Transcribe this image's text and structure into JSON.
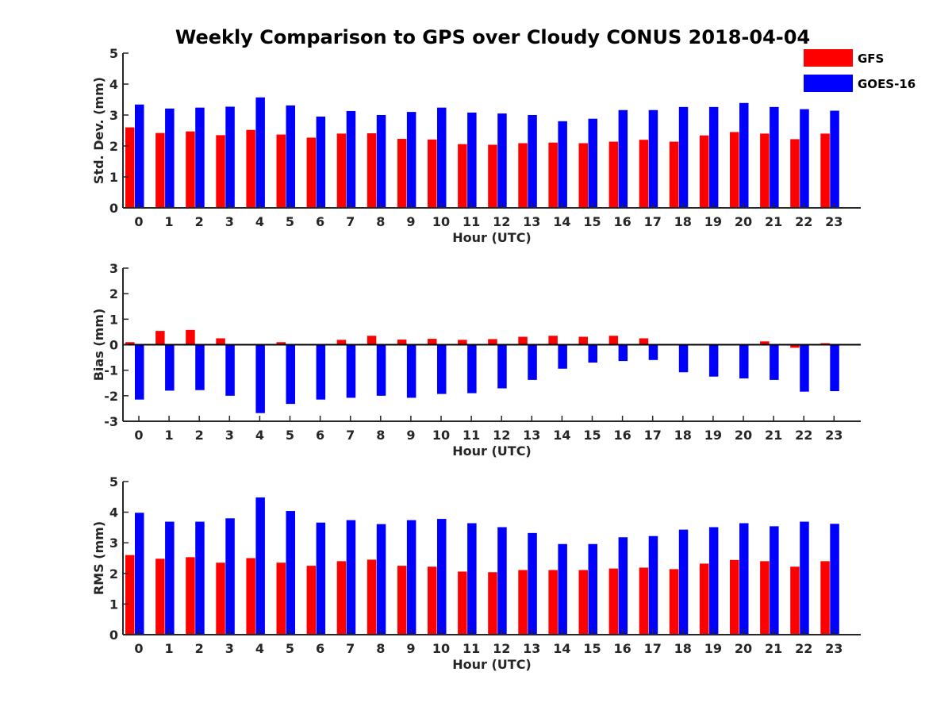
{
  "title": "Weekly Comparison to GPS over Cloudy CONUS 2018-04-04",
  "legend": {
    "placement": "top-right",
    "entries": [
      {
        "label": "GFS",
        "color": "#ff0000"
      },
      {
        "label": "GOES-16",
        "color": "#0000ff"
      }
    ]
  },
  "chart_data": [
    {
      "type": "bar",
      "categories": [
        "0",
        "1",
        "2",
        "3",
        "4",
        "5",
        "6",
        "7",
        "8",
        "9",
        "10",
        "11",
        "12",
        "13",
        "14",
        "15",
        "16",
        "17",
        "18",
        "19",
        "20",
        "21",
        "22",
        "23"
      ],
      "xlabel": "Hour (UTC)",
      "ylabel": "Std. Dev. (mm)",
      "ylim": [
        0,
        5
      ],
      "yticks": [
        "0",
        "1",
        "2",
        "3",
        "4",
        "5"
      ],
      "series": [
        {
          "name": "GFS",
          "color": "#ff0000",
          "values": [
            2.6,
            2.42,
            2.47,
            2.35,
            2.52,
            2.37,
            2.27,
            2.4,
            2.41,
            2.23,
            2.21,
            2.06,
            2.04,
            2.09,
            2.11,
            2.09,
            2.14,
            2.2,
            2.14,
            2.34,
            2.45,
            2.4,
            2.22,
            2.4
          ]
        },
        {
          "name": "GOES-16",
          "color": "#0000ff",
          "values": [
            3.34,
            3.21,
            3.24,
            3.27,
            3.57,
            3.31,
            2.95,
            3.13,
            3.0,
            3.1,
            3.24,
            3.08,
            3.05,
            3.0,
            2.8,
            2.88,
            3.16,
            3.16,
            3.26,
            3.26,
            3.39,
            3.26,
            3.19,
            3.14
          ]
        }
      ]
    },
    {
      "type": "bar",
      "categories": [
        "0",
        "1",
        "2",
        "3",
        "4",
        "5",
        "6",
        "7",
        "8",
        "9",
        "10",
        "11",
        "12",
        "13",
        "14",
        "15",
        "16",
        "17",
        "18",
        "19",
        "20",
        "21",
        "22",
        "23"
      ],
      "xlabel": "Hour (UTC)",
      "ylabel": "Bias (mm)",
      "ylim": [
        -3,
        3
      ],
      "yticks": [
        "-3",
        "-2",
        "-1",
        "0",
        "1",
        "2",
        "3"
      ],
      "series": [
        {
          "name": "GFS",
          "color": "#ff0000",
          "values": [
            0.1,
            0.54,
            0.58,
            0.25,
            -0.03,
            0.1,
            0.03,
            0.19,
            0.35,
            0.2,
            0.23,
            0.19,
            0.22,
            0.31,
            0.35,
            0.31,
            0.35,
            0.25,
            0.03,
            0.02,
            0.03,
            0.13,
            -0.12,
            0.06
          ]
        },
        {
          "name": "GOES-16",
          "color": "#0000ff",
          "values": [
            -2.15,
            -1.8,
            -1.78,
            -2.0,
            -2.68,
            -2.32,
            -2.15,
            -2.08,
            -2.0,
            -2.08,
            -1.93,
            -1.9,
            -1.71,
            -1.38,
            -0.94,
            -0.7,
            -0.64,
            -0.6,
            -1.08,
            -1.25,
            -1.32,
            -1.38,
            -1.84,
            -1.82
          ]
        }
      ]
    },
    {
      "type": "bar",
      "categories": [
        "0",
        "1",
        "2",
        "3",
        "4",
        "5",
        "6",
        "7",
        "8",
        "9",
        "10",
        "11",
        "12",
        "13",
        "14",
        "15",
        "16",
        "17",
        "18",
        "19",
        "20",
        "21",
        "22",
        "23"
      ],
      "xlabel": "Hour (UTC)",
      "ylabel": "RMS (mm)",
      "ylim": [
        0,
        5
      ],
      "yticks": [
        "0",
        "1",
        "2",
        "3",
        "4",
        "5"
      ],
      "series": [
        {
          "name": "GFS",
          "color": "#ff0000",
          "values": [
            2.6,
            2.48,
            2.53,
            2.35,
            2.5,
            2.35,
            2.25,
            2.4,
            2.45,
            2.25,
            2.22,
            2.06,
            2.04,
            2.11,
            2.11,
            2.11,
            2.16,
            2.19,
            2.14,
            2.32,
            2.44,
            2.4,
            2.22,
            2.4
          ]
        },
        {
          "name": "GOES-16",
          "color": "#0000ff",
          "values": [
            3.98,
            3.69,
            3.69,
            3.8,
            4.48,
            4.04,
            3.66,
            3.74,
            3.61,
            3.74,
            3.78,
            3.64,
            3.51,
            3.32,
            2.96,
            2.96,
            3.18,
            3.22,
            3.43,
            3.51,
            3.64,
            3.54,
            3.69,
            3.62
          ]
        }
      ]
    }
  ]
}
